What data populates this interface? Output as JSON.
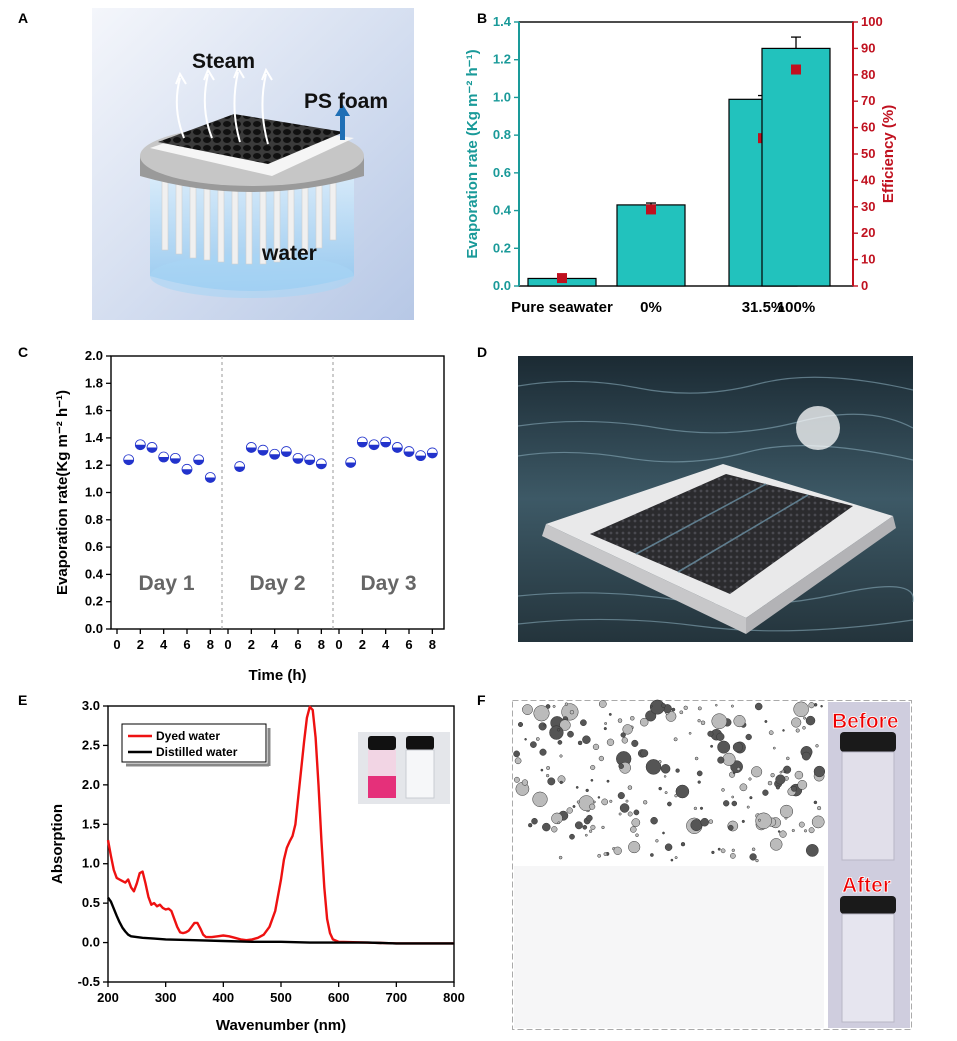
{
  "panel_letters": [
    "A",
    "B",
    "C",
    "D",
    "E",
    "F"
  ],
  "panelA": {
    "labels": {
      "steam": "Steam",
      "ps_foam": "PS foam",
      "water": "water"
    }
  },
  "panelF": {
    "labels": {
      "before": "Before",
      "after": "After"
    }
  },
  "colors": {
    "teal": "#1a9a99",
    "bar_fill": "#22c2bd",
    "red_marker": "#c0111f",
    "blue_marker": "#2233cc",
    "dyed_line": "#ee1111",
    "distilled_line": "#000000"
  },
  "chart_data": [
    {
      "panel": "B",
      "type": "bar",
      "categories": [
        "Pure seawater",
        "0%",
        "31.5%",
        "100%"
      ],
      "series": [
        {
          "values": [
            0.04,
            0.43,
            0.99,
            1.26
          ],
          "errors": [
            0.0,
            0.01,
            0.02,
            0.06
          ],
          "axis": "left"
        },
        {
          "values": [
            3,
            29,
            56,
            82
          ],
          "errors": [
            0,
            1.5,
            1.5,
            1.5
          ],
          "axis": "right",
          "marker": "square"
        }
      ],
      "ylabel": "Evaporation rate (Kg m⁻² h⁻¹)",
      "y2label": "Efficiency (%)",
      "ylim": [
        0,
        1.4
      ],
      "y2lim": [
        0,
        100
      ],
      "yticks": [
        "0.0",
        "0.2",
        "0.4",
        "0.6",
        "0.8",
        "1.0",
        "1.2",
        "1.4"
      ],
      "y2ticks": [
        "0",
        "10",
        "20",
        "30",
        "40",
        "50",
        "60",
        "70",
        "80",
        "90",
        "100"
      ]
    },
    {
      "panel": "C",
      "type": "scatter",
      "ylabel": "Evaporation rate(Kg m⁻² h⁻¹)",
      "xlabel": "Time (h)",
      "ylim": [
        0,
        2.0
      ],
      "yticks": [
        "0.0",
        "0.2",
        "0.4",
        "0.6",
        "0.8",
        "1.0",
        "1.2",
        "1.4",
        "1.6",
        "1.8",
        "2.0"
      ],
      "xticks": [
        "0",
        "2",
        "4",
        "6",
        "8"
      ],
      "days": [
        {
          "label": "Day 1",
          "x": [
            1,
            2,
            3,
            4,
            5,
            6,
            7,
            8
          ],
          "y": [
            1.24,
            1.35,
            1.33,
            1.26,
            1.25,
            1.17,
            1.24,
            1.11
          ]
        },
        {
          "label": "Day 2",
          "x": [
            1,
            2,
            3,
            4,
            5,
            6,
            7,
            8
          ],
          "y": [
            1.19,
            1.33,
            1.31,
            1.28,
            1.3,
            1.25,
            1.24,
            1.21
          ]
        },
        {
          "label": "Day 3",
          "x": [
            1,
            2,
            3,
            4,
            5,
            6,
            7,
            8
          ],
          "y": [
            1.22,
            1.37,
            1.35,
            1.37,
            1.33,
            1.3,
            1.27,
            1.29
          ]
        }
      ]
    },
    {
      "panel": "E",
      "type": "line",
      "xlabel": "Wavenumber (nm)",
      "ylabel": "Absorption",
      "xlim": [
        200,
        800
      ],
      "ylim": [
        -0.5,
        3.0
      ],
      "xticks": [
        "200",
        "300",
        "400",
        "500",
        "600",
        "700",
        "800"
      ],
      "yticks": [
        "-0.5",
        "0.0",
        "0.5",
        "1.0",
        "1.5",
        "2.0",
        "2.5",
        "3.0"
      ],
      "legend_position": "top-left",
      "series": [
        {
          "name": "Dyed water",
          "x": [
            200,
            205,
            210,
            215,
            220,
            225,
            230,
            235,
            240,
            245,
            250,
            255,
            260,
            265,
            270,
            275,
            280,
            285,
            290,
            295,
            300,
            305,
            310,
            315,
            320,
            325,
            330,
            335,
            340,
            345,
            350,
            355,
            360,
            365,
            370,
            380,
            390,
            400,
            410,
            420,
            430,
            440,
            450,
            460,
            470,
            480,
            490,
            500,
            505,
            510,
            515,
            520,
            525,
            530,
            535,
            540,
            545,
            550,
            555,
            560,
            565,
            570,
            575,
            580,
            585,
            590,
            600,
            650,
            700,
            750,
            800
          ],
          "y": [
            1.3,
            1.1,
            0.92,
            0.82,
            0.8,
            0.78,
            0.76,
            0.8,
            0.7,
            0.65,
            0.75,
            0.88,
            0.9,
            0.75,
            0.58,
            0.48,
            0.5,
            0.46,
            0.48,
            0.44,
            0.42,
            0.43,
            0.4,
            0.3,
            0.2,
            0.13,
            0.12,
            0.13,
            0.15,
            0.2,
            0.25,
            0.25,
            0.18,
            0.1,
            0.07,
            0.07,
            0.08,
            0.09,
            0.08,
            0.06,
            0.04,
            0.03,
            0.04,
            0.06,
            0.1,
            0.2,
            0.4,
            0.8,
            1.05,
            1.2,
            1.28,
            1.35,
            1.5,
            1.85,
            2.2,
            2.55,
            2.85,
            2.99,
            2.95,
            2.6,
            2.0,
            1.3,
            0.7,
            0.3,
            0.12,
            0.04,
            0.01,
            0.0,
            -0.01,
            -0.01,
            -0.01
          ]
        },
        {
          "name": "Distilled water",
          "x": [
            200,
            205,
            210,
            215,
            220,
            225,
            230,
            235,
            240,
            250,
            260,
            280,
            300,
            350,
            400,
            450,
            500,
            550,
            600,
            650,
            700,
            750,
            800
          ],
          "y": [
            0.57,
            0.52,
            0.43,
            0.34,
            0.26,
            0.19,
            0.14,
            0.1,
            0.08,
            0.07,
            0.06,
            0.05,
            0.04,
            0.03,
            0.02,
            0.01,
            0.01,
            0.0,
            0.0,
            0.0,
            -0.01,
            -0.01,
            -0.01
          ]
        }
      ]
    }
  ]
}
